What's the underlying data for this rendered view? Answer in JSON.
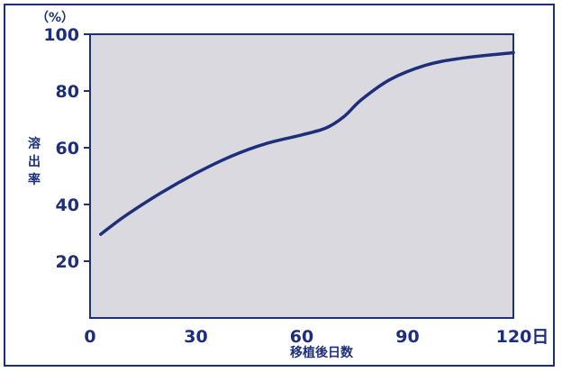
{
  "chart_data": {
    "type": "line",
    "xlabel": "移植後日数",
    "ylabel": "溶出率",
    "y_unit": "（%）",
    "x_unit": "日",
    "xlim": [
      0,
      120
    ],
    "ylim": [
      0,
      100
    ],
    "x_ticks": [
      "0",
      "30",
      "60",
      "90",
      "120日"
    ],
    "y_ticks": [
      "100",
      "80",
      "60",
      "40",
      "20"
    ],
    "grid": false,
    "series": [
      {
        "x": [
          3,
          10,
          20,
          30,
          40,
          50,
          60,
          67,
          72,
          77,
          85,
          95,
          105,
          120
        ],
        "y": [
          29.5,
          36,
          44,
          51,
          57,
          61.5,
          64.5,
          67,
          71,
          77,
          84,
          89,
          91.5,
          93.5
        ],
        "color": "#1d2f7a"
      }
    ]
  }
}
